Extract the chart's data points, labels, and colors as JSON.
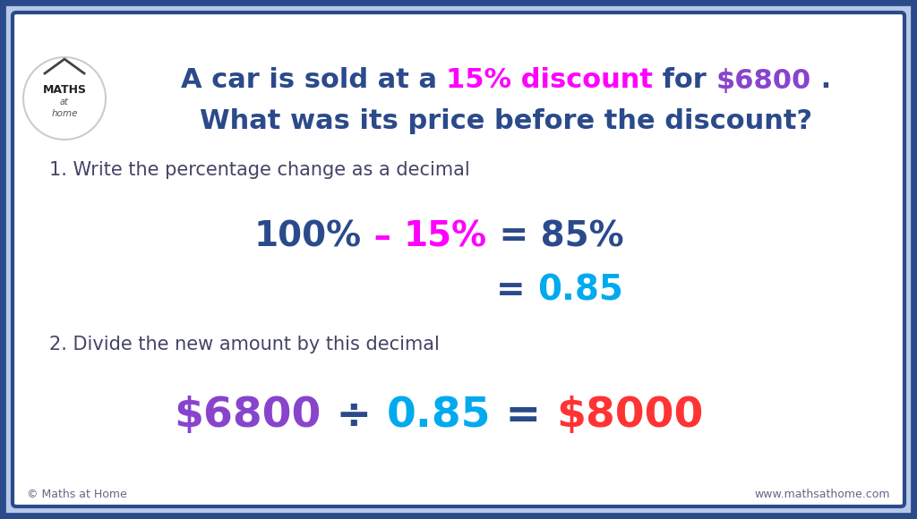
{
  "bg_outer": "#b8c8e8",
  "bg_inner": "#ffffff",
  "border_color": "#2b4a8b",
  "title_line1_parts": [
    {
      "text": "A car is sold at a ",
      "color": "#2b4a8b"
    },
    {
      "text": "15% discount",
      "color": "#ff00ff"
    },
    {
      "text": " for ",
      "color": "#2b4a8b"
    },
    {
      "text": "$6800",
      "color": "#8844cc"
    },
    {
      "text": " .",
      "color": "#2b4a8b"
    }
  ],
  "title_line2": "What was its price before the discount?",
  "title_line2_color": "#2b4a8b",
  "step1_text": "1. Write the percentage change as a decimal",
  "step1_color": "#444466",
  "eq1_parts": [
    {
      "text": "100%",
      "color": "#2b4a8b"
    },
    {
      "text": " – ",
      "color": "#ff00ff"
    },
    {
      "text": "15%",
      "color": "#ff00ff"
    },
    {
      "text": " = 85%",
      "color": "#2b4a8b"
    }
  ],
  "eq2_parts": [
    {
      "text": "= ",
      "color": "#2b4a8b"
    },
    {
      "text": "0.85",
      "color": "#00aaee"
    }
  ],
  "step2_text": "2. Divide the new amount by this decimal",
  "step2_color": "#444466",
  "eq3_parts": [
    {
      "text": "$6800",
      "color": "#8844cc"
    },
    {
      "text": " ÷ ",
      "color": "#2b4a8b"
    },
    {
      "text": "0.85",
      "color": "#00aaee"
    },
    {
      "text": " = ",
      "color": "#2b4a8b"
    },
    {
      "text": "$8000",
      "color": "#ff3333"
    }
  ],
  "footer_left": "© Maths at Home",
  "footer_right": "www.mathsathome.com",
  "footer_color": "#666688"
}
